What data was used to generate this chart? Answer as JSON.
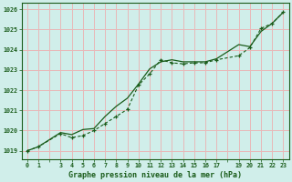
{
  "title": "Graphe pression niveau de la mer (hPa)",
  "background_color": "#d0eeea",
  "grid_color": "#e8b8b8",
  "line_color": "#1a5c1a",
  "xlim": [
    -0.5,
    23.5
  ],
  "ylim": [
    1018.6,
    1026.3
  ],
  "yticks": [
    1019,
    1020,
    1021,
    1022,
    1023,
    1024,
    1025,
    1026
  ],
  "xtick_labels": [
    "0",
    "1",
    "",
    "3",
    "4",
    "5",
    "6",
    "7",
    "8",
    "9",
    "10",
    "11",
    "12",
    "13",
    "14",
    "15",
    "16",
    "17",
    "",
    "19",
    "20",
    "21",
    "22",
    "23"
  ],
  "xtick_positions": [
    0,
    1,
    2,
    3,
    4,
    5,
    6,
    7,
    8,
    9,
    10,
    11,
    12,
    13,
    14,
    15,
    16,
    17,
    18,
    19,
    20,
    21,
    22,
    23
  ],
  "hours": [
    0,
    1,
    3,
    4,
    5,
    6,
    7,
    8,
    9,
    10,
    11,
    12,
    13,
    14,
    15,
    16,
    17,
    19,
    20,
    21,
    22,
    23
  ],
  "pressure_data": [
    1019.0,
    1019.2,
    1019.85,
    1019.65,
    1019.75,
    1020.0,
    1020.35,
    1020.7,
    1021.05,
    1022.25,
    1022.8,
    1023.5,
    1023.35,
    1023.3,
    1023.35,
    1023.35,
    1023.5,
    1023.7,
    1024.1,
    1025.05,
    1025.3,
    1025.85
  ],
  "pressure_trend": [
    1019.0,
    1019.2,
    1019.9,
    1019.8,
    1020.05,
    1020.1,
    1020.7,
    1021.2,
    1021.6,
    1022.3,
    1023.05,
    1023.4,
    1023.5,
    1023.4,
    1023.4,
    1023.4,
    1023.55,
    1024.25,
    1024.15,
    1024.9,
    1025.3,
    1025.85
  ]
}
